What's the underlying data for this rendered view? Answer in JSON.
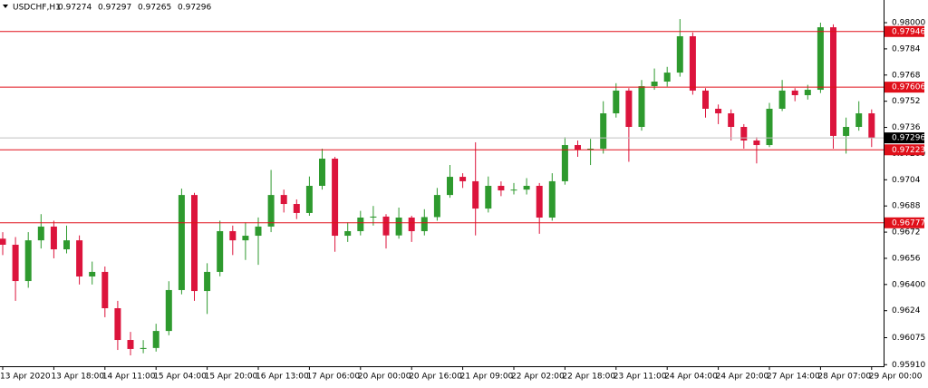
{
  "chart_data": {
    "type": "candlestick",
    "title": "USDCHF,H1",
    "header_values": [
      0.97274,
      0.97297,
      0.97265,
      0.97296
    ],
    "categories": [
      "13 Apr 2020",
      null,
      null,
      null,
      "13 Apr 18:00",
      null,
      null,
      null,
      "14 Apr 11:00",
      null,
      null,
      null,
      "15 Apr 04:00",
      null,
      null,
      null,
      "15 Apr 20:00",
      null,
      null,
      null,
      "16 Apr 13:00",
      null,
      null,
      null,
      "17 Apr 06:00",
      null,
      null,
      null,
      "20 Apr 00:00",
      null,
      null,
      null,
      "20 Apr 16:00",
      null,
      null,
      null,
      "21 Apr 09:00",
      null,
      null,
      null,
      "22 Apr 02:00",
      null,
      null,
      null,
      "22 Apr 18:00",
      null,
      null,
      null,
      "23 Apr 11:00",
      null,
      null,
      null,
      "24 Apr 04:00",
      null,
      null,
      null,
      "24 Apr 20:00",
      null,
      null,
      null,
      "27 Apr 14:00",
      null,
      null,
      null,
      "28 Apr 07:00",
      null,
      null,
      null,
      "29 Apr 00:00"
    ],
    "open": [
      0.9668,
      0.96643,
      0.96421,
      0.9667,
      0.96754,
      0.96615,
      0.9667,
      0.96449,
      0.96477,
      0.96255,
      0.96061,
      0.96006,
      0.96012,
      0.96116,
      0.96366,
      0.96947,
      0.9636,
      0.96477,
      0.96726,
      0.9667,
      0.96698,
      0.96754,
      0.96947,
      0.96892,
      0.96837,
      0.97003,
      0.97169,
      0.96698,
      0.96726,
      0.96809,
      0.96815,
      0.967,
      0.96809,
      0.96726,
      0.96812,
      0.96947,
      0.97058,
      0.97031,
      0.96864,
      0.97003,
      0.96975,
      0.9698,
      0.97003,
      0.96809,
      0.97031,
      0.97252,
      0.97224,
      0.9723,
      0.97446,
      0.97585,
      0.97363,
      0.97612,
      0.9764,
      0.97695,
      0.97917,
      0.97585,
      0.97474,
      0.97446,
      0.97363,
      0.9728,
      0.97252,
      0.97474,
      0.97585,
      0.97557,
      0.9759,
      0.97972,
      0.97308,
      0.97363,
      0.97446
    ],
    "high": [
      0.9672,
      0.9669,
      0.9672,
      0.9683,
      0.9679,
      0.9676,
      0.967,
      0.9654,
      0.9651,
      0.963,
      0.9611,
      0.9606,
      0.9616,
      0.9642,
      0.96986,
      0.9696,
      0.9653,
      0.9679,
      0.9676,
      0.9678,
      0.9681,
      0.971,
      0.9698,
      0.9692,
      0.9706,
      0.9723,
      0.9718,
      0.9678,
      0.9685,
      0.9688,
      0.9683,
      0.9687,
      0.9682,
      0.9686,
      0.9699,
      0.9713,
      0.9708,
      0.97269,
      0.9706,
      0.9703,
      0.9702,
      0.9705,
      0.9702,
      0.9708,
      0.973,
      0.9728,
      0.9729,
      0.9752,
      0.9763,
      0.976,
      0.9765,
      0.9772,
      0.9773,
      0.98022,
      0.9794,
      0.976,
      0.975,
      0.9747,
      0.9738,
      0.973,
      0.9751,
      0.9765,
      0.976,
      0.9762,
      0.98,
      0.9799,
      0.9742,
      0.9752,
      0.9747
    ],
    "low": [
      0.9658,
      0.963,
      0.9638,
      0.9662,
      0.9656,
      0.9659,
      0.964,
      0.964,
      0.962,
      0.96,
      0.95967,
      0.9598,
      0.9599,
      0.9609,
      0.9634,
      0.963,
      0.9622,
      0.9645,
      0.9658,
      0.9655,
      0.9652,
      0.9672,
      0.9684,
      0.968,
      0.9682,
      0.9698,
      0.966,
      0.9666,
      0.967,
      0.9676,
      0.9662,
      0.9668,
      0.9666,
      0.967,
      0.9679,
      0.9693,
      0.9699,
      0.967,
      0.9684,
      0.9694,
      0.9695,
      0.9695,
      0.9671,
      0.9679,
      0.9701,
      0.9718,
      0.9713,
      0.972,
      0.9742,
      0.9715,
      0.9734,
      0.9759,
      0.9761,
      0.9767,
      0.9756,
      0.9742,
      0.9738,
      0.9728,
      0.9723,
      0.9714,
      0.9724,
      0.9746,
      0.9752,
      0.9753,
      0.9757,
      0.9723,
      0.972,
      0.9734,
      0.9724
    ],
    "close": [
      0.96643,
      0.96421,
      0.9667,
      0.96754,
      0.96615,
      0.9667,
      0.96449,
      0.96477,
      0.96255,
      0.96061,
      0.96006,
      0.96012,
      0.96116,
      0.96366,
      0.96947,
      0.9636,
      0.96477,
      0.96726,
      0.9667,
      0.96698,
      0.96754,
      0.96947,
      0.96892,
      0.96837,
      0.97003,
      0.97169,
      0.96698,
      0.96726,
      0.96809,
      0.96815,
      0.967,
      0.96809,
      0.96726,
      0.96812,
      0.96947,
      0.97058,
      0.97031,
      0.96864,
      0.97003,
      0.96975,
      0.9698,
      0.97003,
      0.96809,
      0.97031,
      0.97252,
      0.97224,
      0.9723,
      0.97446,
      0.97585,
      0.97363,
      0.97612,
      0.9764,
      0.97695,
      0.97917,
      0.97585,
      0.97474,
      0.97446,
      0.97363,
      0.9728,
      0.97252,
      0.97474,
      0.97585,
      0.97557,
      0.9759,
      0.97972,
      0.97308,
      0.97363,
      0.97446,
      0.97296
    ],
    "up_color": "#2e9a2e",
    "down_color": "#dc143c",
    "level_color": "#e0101a",
    "levels": [
      0.97946,
      0.97606,
      0.97223,
      0.96777
    ],
    "last_price": 0.97296,
    "ylim": [
      0.95906,
      0.98122
    ],
    "yticks": [
      {
        "value": 0.98,
        "label": "0.98000"
      },
      0.9784,
      0.9768,
      0.9752,
      0.9736,
      {
        "value": 0.972,
        "label": "0.97200"
      },
      0.9704,
      0.9688,
      0.9672,
      0.9656,
      {
        "value": 0.964,
        "label": "0.96400"
      },
      0.9624,
      0.96075,
      {
        "value": 0.9591,
        "label": "0.95910"
      }
    ]
  }
}
